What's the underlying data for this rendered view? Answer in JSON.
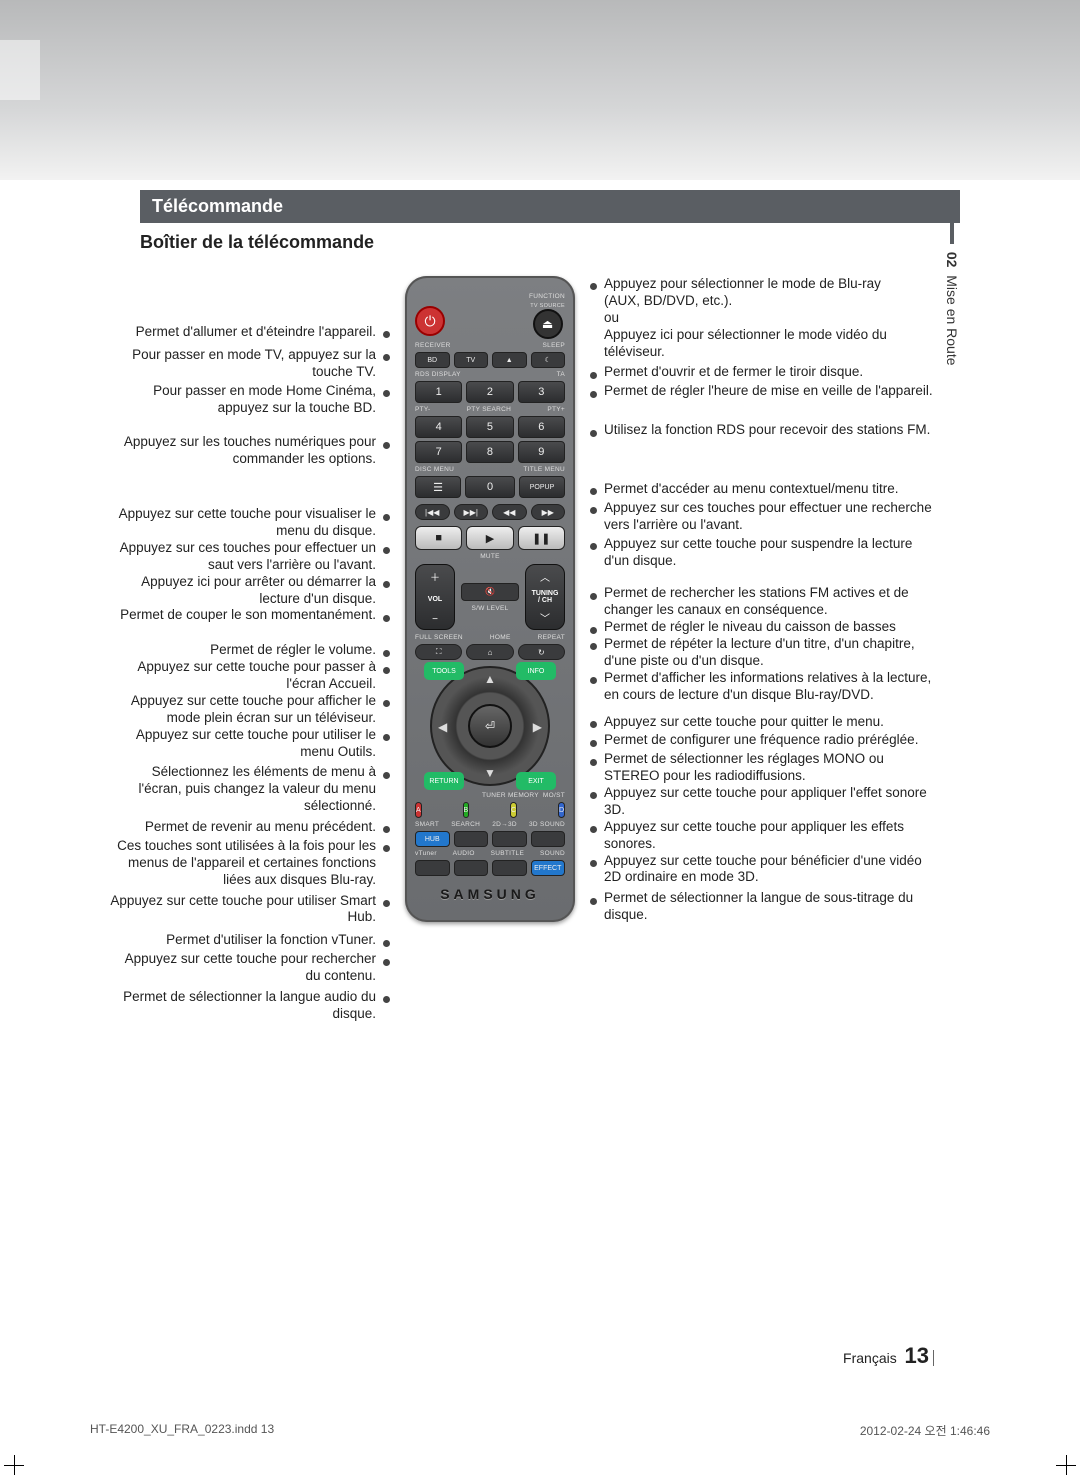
{
  "header": {
    "section_title": "Télécommande",
    "subtitle": "Boîtier de la télécommande"
  },
  "side_tab": {
    "number": "02",
    "label": "Mise en Route"
  },
  "left_callouts": [
    {
      "text": "Permet d'allumer et d'éteindre l'appareil.",
      "gap_before": 48
    },
    {
      "text": "Pour passer en mode TV, appuyez sur la touche TV.",
      "gap_before": 6
    },
    {
      "text": "Pour passer en mode Home Cinéma, appuyez sur la touche BD.",
      "gap_before": 2
    },
    {
      "text": "Appuyez sur les touches numériques pour commander les options.",
      "gap_before": 18
    },
    {
      "text": "Appuyez sur cette touche pour visualiser le menu du disque.",
      "gap_before": 38
    },
    {
      "text": "Appuyez sur ces touches pour effectuer un saut vers l'arrière ou l'avant.",
      "gap_before": 0
    },
    {
      "text": "Appuyez ici pour arrêter ou démarrer la lecture d'un disque.",
      "gap_before": 0
    },
    {
      "text": "Permet de couper le son momentanément.",
      "gap_before": 0
    },
    {
      "text": "Permet de régler le volume.",
      "gap_before": 18
    },
    {
      "text": "Appuyez sur cette touche pour passer à l'écran Accueil.",
      "gap_before": 0
    },
    {
      "text": "Appuyez sur cette touche pour afficher le mode plein écran sur un téléviseur.",
      "gap_before": 0
    },
    {
      "text": "Appuyez sur cette touche pour utiliser le menu Outils.",
      "gap_before": 0
    },
    {
      "text": "Sélectionnez les éléments de menu à l'écran, puis changez la valeur du menu sélectionné.",
      "gap_before": 4
    },
    {
      "text": "Permet de revenir au menu précédent.",
      "gap_before": 4
    },
    {
      "text": "Ces touches sont utilisées à la fois pour les menus de l'appareil et certaines fonctions liées aux disques Blu-ray.",
      "gap_before": 2
    },
    {
      "text": "Appuyez sur cette touche pour utiliser Smart Hub.",
      "gap_before": 4
    },
    {
      "text": "Permet d'utiliser la fonction vTuner.",
      "gap_before": 6
    },
    {
      "text": "Appuyez sur cette touche pour rechercher du contenu.",
      "gap_before": 2
    },
    {
      "text": "Permet de sélectionner la langue audio du disque.",
      "gap_before": 4
    }
  ],
  "right_callouts": [
    {
      "text": "Appuyez pour sélectionner le mode de Blu-ray\n(AUX, BD/DVD, etc.).\nou\nAppuyez ici pour sélectionner le mode vidéo du téléviseur.",
      "gap_before": 0
    },
    {
      "text": "Permet d'ouvrir et de fermer le tiroir disque.",
      "gap_before": 4
    },
    {
      "text": "Permet de régler l'heure de mise en veille de l'appareil.",
      "gap_before": 2
    },
    {
      "text": "Utilisez la fonction RDS pour recevoir des stations FM.",
      "gap_before": 22
    },
    {
      "text": "Permet d'accéder au menu contextuel/menu titre.",
      "gap_before": 42
    },
    {
      "text": "Appuyez sur ces touches pour effectuer une recherche vers l'arrière ou l'avant.",
      "gap_before": 2
    },
    {
      "text": "Appuyez sur cette touche pour suspendre la lecture d'un disque.",
      "gap_before": 2
    },
    {
      "text": "Permet de rechercher les stations FM actives et de changer les canaux en conséquence.",
      "gap_before": 16
    },
    {
      "text": "Permet de régler le niveau du caisson de basses",
      "gap_before": 0
    },
    {
      "text": "Permet de répéter la lecture d'un titre, d'un chapitre, d'une piste ou d'un disque.",
      "gap_before": 0
    },
    {
      "text": "Permet d'afficher les informations relatives à la lecture, en cours de lecture d'un disque Blu-ray/DVD.",
      "gap_before": 0
    },
    {
      "text": "Appuyez sur cette touche pour quitter le menu.",
      "gap_before": 10
    },
    {
      "text": "Permet de configurer une fréquence radio préréglée.",
      "gap_before": 2
    },
    {
      "text": "Permet de sélectionner les réglages MONO ou STEREO pour les radiodiffusions.",
      "gap_before": 2
    },
    {
      "text": "Appuyez sur cette touche pour appliquer l'effet sonore 3D.",
      "gap_before": 0
    },
    {
      "text": "Appuyez sur cette touche pour appliquer les effets sonores.",
      "gap_before": 0
    },
    {
      "text": "Appuyez sur cette touche pour bénéficier d'une vidéo 2D ordinaire en mode 3D.",
      "gap_before": 0
    },
    {
      "text": "Permet de sélectionner la langue de sous-titrage du disque.",
      "gap_before": 4
    }
  ],
  "remote": {
    "function_label": "FUNCTION",
    "tv_source_label": "TV SOURCE",
    "receiver_label": "RECEIVER",
    "sleep_label": "SLEEP",
    "bd": "BD",
    "tv": "TV",
    "eject": "▲",
    "rds_display": "RDS DISPLAY",
    "ta": "TA",
    "pty_minus": "PTY-",
    "pty_search": "PTY SEARCH",
    "pty_plus": "PTY+",
    "disc_menu": "DISC MENU",
    "title_menu": "TITLE MENU",
    "popup": "POPUP",
    "mute": "MUTE",
    "vol": "VOL",
    "tuning": "TUNING",
    "ch": "/ CH",
    "sw": "S/W LEVEL",
    "fullscreen": "FULL SCREEN",
    "home": "HOME",
    "repeat": "REPEAT",
    "tools": "TOOLS",
    "info": "INFO",
    "return": "RETURN",
    "exit": "EXIT",
    "tuner_memory": "TUNER MEMORY",
    "most": "MO/ST",
    "a": "A",
    "b": "B",
    "c": "C",
    "d": "D",
    "smart": "SMART",
    "hub": "HUB",
    "search": "SEARCH",
    "twod3d": "2D→3D",
    "sound3d": "3D SOUND",
    "vtuner": "vTuner",
    "audio": "AUDIO",
    "subtitle": "SUBTITLE",
    "sound": "SOUND",
    "effect": "EFFECT",
    "brand": "SAMSUNG",
    "numbers": [
      "1",
      "2",
      "3",
      "4",
      "5",
      "6",
      "7",
      "8",
      "9",
      "0"
    ]
  },
  "footer": {
    "lang": "Français",
    "page": "13",
    "file": "HT-E4200_XU_FRA_0223.indd   13",
    "timestamp": "2012-02-24   오전 1:46:46"
  }
}
